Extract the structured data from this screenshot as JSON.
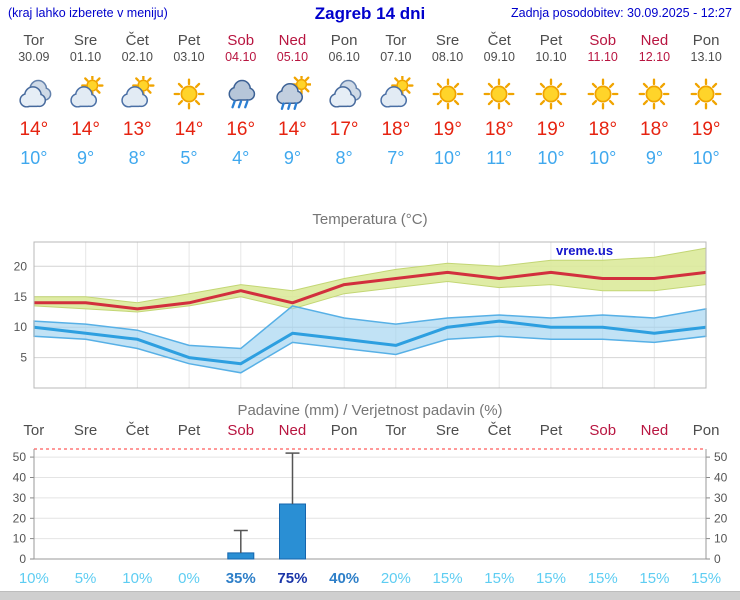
{
  "header": {
    "left_note": "(kraj lahko izberete v meniju)",
    "title": "Zagreb 14 dni",
    "updated": "Zadnja posodobitev: 30.09.2025 - 12:27"
  },
  "days": [
    {
      "name": "Tor",
      "date": "30.09",
      "icon": "cloud",
      "tmax": "14°",
      "tmin": "10°",
      "weekend": false
    },
    {
      "name": "Sre",
      "date": "01.10",
      "icon": "sun-cloud",
      "tmax": "14°",
      "tmin": "9°",
      "weekend": false
    },
    {
      "name": "Čet",
      "date": "02.10",
      "icon": "sun-cloud",
      "tmax": "13°",
      "tmin": "8°",
      "weekend": false
    },
    {
      "name": "Pet",
      "date": "03.10",
      "icon": "sun",
      "tmax": "14°",
      "tmin": "5°",
      "weekend": false
    },
    {
      "name": "Sob",
      "date": "04.10",
      "icon": "rain",
      "tmax": "16°",
      "tmin": "4°",
      "weekend": true
    },
    {
      "name": "Ned",
      "date": "05.10",
      "icon": "rain-sun",
      "tmax": "14°",
      "tmin": "9°",
      "weekend": true
    },
    {
      "name": "Pon",
      "date": "06.10",
      "icon": "cloud",
      "tmax": "17°",
      "tmin": "8°",
      "weekend": false
    },
    {
      "name": "Tor",
      "date": "07.10",
      "icon": "sun-cloud",
      "tmax": "18°",
      "tmin": "7°",
      "weekend": false
    },
    {
      "name": "Sre",
      "date": "08.10",
      "icon": "sun",
      "tmax": "19°",
      "tmin": "10°",
      "weekend": false
    },
    {
      "name": "Čet",
      "date": "09.10",
      "icon": "sun",
      "tmax": "18°",
      "tmin": "11°",
      "weekend": false
    },
    {
      "name": "Pet",
      "date": "10.10",
      "icon": "sun",
      "tmax": "19°",
      "tmin": "10°",
      "weekend": false
    },
    {
      "name": "Sob",
      "date": "11.10",
      "icon": "sun",
      "tmax": "18°",
      "tmin": "10°",
      "weekend": true
    },
    {
      "name": "Ned",
      "date": "12.10",
      "icon": "sun",
      "tmax": "18°",
      "tmin": "9°",
      "weekend": true
    },
    {
      "name": "Pon",
      "date": "13.10",
      "icon": "sun",
      "tmax": "19°",
      "tmin": "10°",
      "weekend": false
    }
  ],
  "chart_data": [
    {
      "type": "line",
      "title": "Temperatura (°C)",
      "watermark": "vreme.us",
      "categories": [
        "Tor",
        "Sre",
        "Čet",
        "Pet",
        "Sob",
        "Ned",
        "Pon",
        "Tor",
        "Sre",
        "Čet",
        "Pet",
        "Sob",
        "Ned",
        "Pon"
      ],
      "series": [
        {
          "name": "max_temp",
          "color": "#d22f3d",
          "values": [
            14,
            14,
            13,
            14,
            16,
            14,
            17,
            18,
            19,
            18,
            19,
            18,
            18,
            19
          ]
        },
        {
          "name": "max_range_upper",
          "values": [
            15,
            15,
            14,
            15.5,
            17,
            16,
            18,
            19.5,
            20.5,
            20,
            21,
            21,
            21.5,
            23
          ]
        },
        {
          "name": "max_range_lower",
          "values": [
            13.5,
            13,
            12.5,
            13.5,
            15,
            13,
            15.5,
            16.5,
            17.5,
            16.5,
            17,
            16,
            16,
            17
          ]
        },
        {
          "name": "min_temp",
          "color": "#2d9fe0",
          "values": [
            10,
            9,
            8,
            5,
            4,
            9,
            8,
            7,
            10,
            11,
            10,
            10,
            9,
            10
          ]
        },
        {
          "name": "min_range_upper",
          "values": [
            11,
            10.5,
            9.5,
            7,
            6.5,
            13.5,
            11.5,
            10.5,
            11.5,
            12,
            11.5,
            12,
            11.5,
            13
          ]
        },
        {
          "name": "min_range_lower",
          "values": [
            8.5,
            8,
            6.5,
            4,
            2.5,
            7.5,
            6.5,
            5.5,
            8,
            8.5,
            8,
            8,
            7.5,
            8.5
          ]
        }
      ],
      "ylim": [
        0,
        24
      ],
      "yticks": [
        5,
        10,
        15,
        20
      ],
      "band_colors": {
        "max": "#dcea9b",
        "min": "#9fd2f0"
      },
      "grid": true,
      "legend": "none"
    },
    {
      "type": "bar",
      "title": "Padavine (mm) / Verjetnost padavin (%)",
      "categories": [
        "Tor",
        "Sre",
        "Čet",
        "Pet",
        "Sob",
        "Ned",
        "Pon",
        "Tor",
        "Sre",
        "Čet",
        "Pet",
        "Sob",
        "Ned",
        "Pon"
      ],
      "weekend_mask": [
        false,
        false,
        false,
        false,
        true,
        true,
        false,
        false,
        false,
        false,
        false,
        true,
        true,
        false
      ],
      "precip_mm": [
        0,
        0,
        0,
        0,
        3,
        27,
        0,
        0,
        0,
        0,
        0,
        0,
        0,
        0
      ],
      "precip_max_mm": [
        0,
        0,
        0,
        0,
        14,
        52,
        0,
        0,
        0,
        0,
        0,
        0,
        0,
        0
      ],
      "probability_pct": [
        10,
        5,
        10,
        0,
        35,
        75,
        40,
        20,
        15,
        15,
        15,
        15,
        15,
        15
      ],
      "ylim": [
        0,
        54
      ],
      "yticks": [
        0,
        10,
        20,
        30,
        40,
        50
      ],
      "bar_color": "#2a8fd4",
      "grid": true
    }
  ]
}
